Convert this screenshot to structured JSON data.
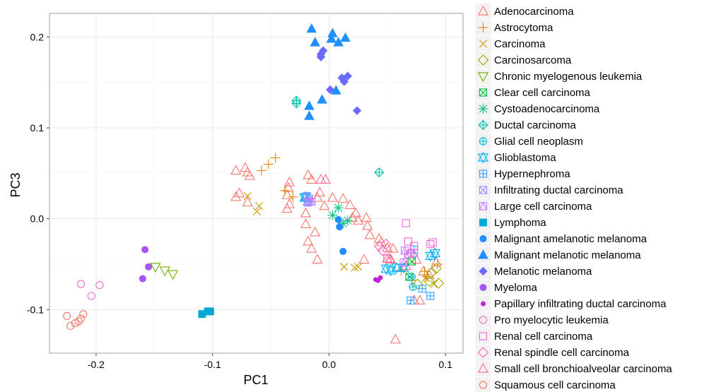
{
  "chart_data": {
    "type": "scatter",
    "xlabel": "PC1",
    "ylabel": "PC3",
    "xlim": [
      -0.24,
      0.115
    ],
    "ylim": [
      -0.148,
      0.226
    ],
    "x_ticks": [
      -0.2,
      -0.1,
      0.0,
      0.1
    ],
    "x_tick_labels": [
      "-0.2",
      "-0.1",
      "0.0",
      "0.1"
    ],
    "y_ticks": [
      -0.1,
      0.0,
      0.1,
      0.2
    ],
    "y_tick_labels": [
      "-0.1",
      "0.0",
      "0.1",
      "0.2"
    ],
    "grid": true,
    "legend_position": "right",
    "series": [
      {
        "name": "Adenocarcinoma",
        "color": "#F8766D",
        "marker": "triangle-open",
        "points": [
          [
            -0.08,
            0.053
          ],
          [
            -0.072,
            0.056
          ],
          [
            -0.07,
            0.051
          ],
          [
            -0.068,
            0.047
          ],
          [
            -0.08,
            0.024
          ],
          [
            -0.077,
            0.028
          ],
          [
            -0.07,
            0.018
          ],
          [
            -0.034,
            0.04
          ],
          [
            -0.035,
            0.034
          ],
          [
            -0.036,
            0.026
          ],
          [
            -0.034,
            0.016
          ],
          [
            -0.036,
            0.011
          ],
          [
            -0.018,
            0.048
          ],
          [
            -0.015,
            0.043
          ],
          [
            -0.008,
            0.029
          ],
          [
            -0.004,
            0.014
          ],
          [
            -0.01,
            0.023
          ],
          [
            -0.02,
            0.006
          ],
          [
            -0.02,
            -0.006
          ],
          [
            -0.012,
            -0.015
          ],
          [
            -0.018,
            -0.025
          ],
          [
            -0.015,
            -0.033
          ],
          [
            0.003,
            0.023
          ],
          [
            0.012,
            0.022
          ],
          [
            0.018,
            0.015
          ],
          [
            0.023,
            0.006
          ],
          [
            0.02,
            0.001
          ],
          [
            0.025,
            -0.002
          ],
          [
            0.032,
            0.001
          ],
          [
            0.033,
            -0.008
          ],
          [
            0.035,
            -0.018
          ],
          [
            0.043,
            -0.022
          ],
          [
            0.045,
            -0.026
          ],
          [
            0.05,
            -0.032
          ],
          [
            0.055,
            -0.033
          ],
          [
            0.052,
            -0.044
          ],
          [
            0.066,
            -0.052
          ],
          [
            0.075,
            -0.045
          ],
          [
            0.081,
            -0.058
          ],
          [
            0.086,
            -0.062
          ],
          [
            0.092,
            -0.048
          ],
          [
            0.057,
            -0.133
          ],
          [
            0.073,
            -0.09
          ],
          [
            0.078,
            -0.09
          ],
          [
            -0.01,
            -0.045
          ],
          [
            0.03,
            -0.045
          ]
        ]
      },
      {
        "name": "Astrocytoma",
        "color": "#E58700",
        "marker": "plus",
        "points": [
          [
            -0.058,
            0.053
          ],
          [
            -0.052,
            0.06
          ],
          [
            -0.046,
            0.067
          ],
          [
            -0.038,
            0.031
          ],
          [
            -0.031,
            0.024
          ],
          [
            0.062,
            -0.057
          ],
          [
            0.071,
            -0.068
          ],
          [
            0.082,
            -0.058
          ],
          [
            0.093,
            -0.05
          ],
          [
            0.084,
            -0.064
          ]
        ]
      },
      {
        "name": "Carcinoma",
        "color": "#C99800",
        "marker": "x",
        "points": [
          [
            -0.07,
            0.025
          ],
          [
            -0.06,
            0.014
          ],
          [
            -0.062,
            0.008
          ],
          [
            0.013,
            -0.053
          ],
          [
            0.022,
            -0.054
          ],
          [
            0.025,
            -0.053
          ],
          [
            0.083,
            -0.065
          ],
          [
            0.09,
            -0.072
          ]
        ]
      },
      {
        "name": "Carcinosarcoma",
        "color": "#A3A500",
        "marker": "diamond-open",
        "points": [
          [
            0.076,
            -0.072
          ],
          [
            0.086,
            -0.069
          ],
          [
            0.094,
            -0.071
          ],
          [
            0.088,
            -0.059
          ],
          [
            0.092,
            -0.055
          ]
        ]
      },
      {
        "name": "Chronic myelogenous leukemia",
        "color": "#6BB100",
        "marker": "triangle-down-open",
        "points": [
          [
            -0.149,
            -0.053
          ],
          [
            -0.141,
            -0.057
          ],
          [
            -0.134,
            -0.061
          ]
        ]
      },
      {
        "name": "Clear cell carcinoma",
        "color": "#00BA38",
        "marker": "square-x",
        "points": [
          [
            0.069,
            -0.064
          ],
          [
            0.071,
            -0.047
          ]
        ]
      },
      {
        "name": "Cystoadenocarcinoma",
        "color": "#00BF7D",
        "marker": "asterisk",
        "points": [
          [
            0.003,
            0.004
          ],
          [
            0.008,
            0.012
          ],
          [
            0.016,
            -0.002
          ],
          [
            0.012,
            -0.005
          ]
        ]
      },
      {
        "name": "Ductal carcinoma",
        "color": "#00C0AF",
        "marker": "circle-plus-diamond",
        "points": [
          [
            -0.028,
            0.127
          ],
          [
            -0.028,
            0.13
          ],
          [
            0.043,
            0.051
          ]
        ]
      },
      {
        "name": "Glial cell neoplasm",
        "color": "#00BCD8",
        "marker": "circle-plus",
        "points": [
          [
            0.071,
            -0.064
          ],
          [
            0.072,
            -0.075
          ]
        ]
      },
      {
        "name": "Glioblastoma",
        "color": "#00B0F6",
        "marker": "star-of-david",
        "points": [
          [
            -0.021,
            0.023
          ],
          [
            -0.02,
            0.024
          ],
          [
            -0.018,
            0.019
          ],
          [
            0.049,
            -0.055
          ],
          [
            0.053,
            -0.057
          ],
          [
            0.058,
            -0.054
          ],
          [
            0.064,
            -0.054
          ],
          [
            0.091,
            -0.038
          ],
          [
            0.087,
            -0.041
          ]
        ]
      },
      {
        "name": "Hypernephroma",
        "color": "#35A2FF",
        "marker": "square-plus",
        "points": [
          [
            0.07,
            -0.09
          ],
          [
            0.08,
            -0.077
          ],
          [
            0.087,
            -0.085
          ],
          [
            0.073,
            -0.034
          ]
        ]
      },
      {
        "name": "Infiltrating ductal carcinoma",
        "color": "#9590FF",
        "marker": "square-x",
        "points": [
          [
            -0.019,
            0.025
          ],
          [
            -0.017,
            0.022
          ]
        ]
      },
      {
        "name": "Large cell carcinoma",
        "color": "#C77CFF",
        "marker": "square-triangle",
        "points": [
          [
            -0.018,
            0.018
          ],
          [
            -0.015,
            0.019
          ],
          [
            0.065,
            -0.035
          ],
          [
            0.068,
            -0.039
          ],
          [
            0.073,
            -0.038
          ],
          [
            0.064,
            -0.048
          ]
        ]
      },
      {
        "name": "Lymphoma",
        "color": "#00A9D4",
        "marker": "square",
        "points": [
          [
            -0.109,
            -0.105
          ],
          [
            -0.104,
            -0.102
          ],
          [
            -0.102,
            -0.102
          ]
        ]
      },
      {
        "name": "Malignant amelanotic melanoma",
        "color": "#1E90FF",
        "marker": "circle",
        "points": [
          [
            0.008,
            -0.001
          ],
          [
            0.009,
            -0.009
          ],
          [
            0.012,
            -0.036
          ]
        ]
      },
      {
        "name": "Malignant melanotic melanoma",
        "color": "#1E90FF",
        "marker": "triangle",
        "points": [
          [
            -0.015,
            0.209
          ],
          [
            -0.012,
            0.194
          ],
          [
            0.002,
            0.198
          ],
          [
            0.003,
            0.204
          ],
          [
            0.008,
            0.194
          ],
          [
            0.014,
            0.199
          ],
          [
            -0.017,
            0.124
          ],
          [
            -0.017,
            0.113
          ],
          [
            -0.006,
            0.131
          ],
          [
            0.006,
            0.141
          ]
        ]
      },
      {
        "name": "Melanotic melanoma",
        "color": "#6A6AFF",
        "marker": "diamond",
        "points": [
          [
            -0.007,
            0.181
          ],
          [
            -0.005,
            0.185
          ],
          [
            -0.007,
            0.178
          ],
          [
            0.011,
            0.155
          ],
          [
            0.016,
            0.157
          ],
          [
            0.013,
            0.151
          ],
          [
            0.001,
            0.142
          ],
          [
            0.024,
            0.119
          ]
        ]
      },
      {
        "name": "Myeloma",
        "color": "#A855F7",
        "marker": "circle",
        "points": [
          [
            -0.158,
            -0.034
          ],
          [
            -0.155,
            -0.053
          ],
          [
            -0.16,
            -0.066
          ]
        ]
      },
      {
        "name": "Papillary infiltrating ductal carcinoma",
        "color": "#C026D3",
        "marker": "circle-small",
        "points": [
          [
            0.04,
            -0.067
          ],
          [
            0.044,
            -0.065
          ],
          [
            0.042,
            -0.068
          ]
        ]
      },
      {
        "name": "Pro myelocytic leukemia",
        "color": "#F06EC3",
        "marker": "circle-open",
        "points": [
          [
            -0.213,
            -0.072
          ],
          [
            -0.197,
            -0.073
          ],
          [
            -0.204,
            -0.085
          ]
        ]
      },
      {
        "name": "Renal cell carcinoma",
        "color": "#F062D8",
        "marker": "square-open",
        "points": [
          [
            0.066,
            -0.005
          ],
          [
            0.068,
            -0.025
          ],
          [
            0.073,
            -0.03
          ],
          [
            0.089,
            -0.026
          ],
          [
            0.087,
            -0.028
          ],
          [
            0.05,
            -0.044
          ]
        ]
      },
      {
        "name": "Renal spindle cell carcinoma",
        "color": "#FF62BC",
        "marker": "diamond-open",
        "points": [
          [
            0.043,
            -0.03
          ],
          [
            0.046,
            -0.035
          ],
          [
            0.049,
            -0.028
          ],
          [
            0.07,
            -0.038
          ]
        ]
      },
      {
        "name": "Small cell bronchioalveolar carcinoma",
        "color": "#FF6C91",
        "marker": "triangle-open",
        "points": [
          [
            -0.007,
            0.043
          ],
          [
            -0.003,
            0.043
          ],
          [
            0.05,
            -0.044
          ],
          [
            0.053,
            -0.045
          ]
        ]
      },
      {
        "name": "Squamous cell carcinoma",
        "color": "#F8766D",
        "marker": "circle-open",
        "points": [
          [
            -0.225,
            -0.107
          ],
          [
            -0.222,
            -0.118
          ],
          [
            -0.218,
            -0.115
          ],
          [
            -0.213,
            -0.11
          ],
          [
            -0.211,
            -0.105
          ],
          [
            -0.215,
            -0.113
          ]
        ]
      }
    ]
  }
}
